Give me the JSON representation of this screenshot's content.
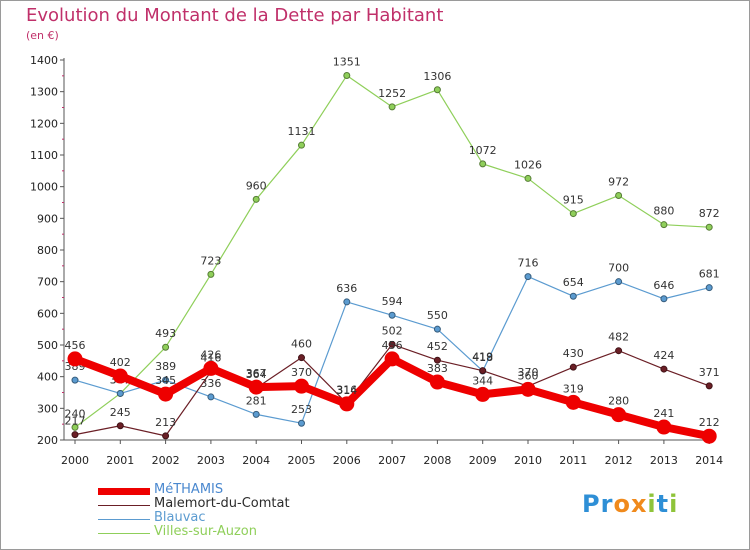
{
  "title": "Evolution du Montant de la Dette par Habitant",
  "subtitle": "(en €)",
  "logo": {
    "letters": [
      "P",
      "r",
      "o",
      "x",
      "i",
      "t",
      "i"
    ],
    "colors": [
      "#2e8fd6",
      "#2e8fd6",
      "#f08a1c",
      "#f08a1c",
      "#8fc43a",
      "#2e8fd6",
      "#8fc43a"
    ]
  },
  "chart_data": {
    "type": "line",
    "title": "Evolution du Montant de la Dette par Habitant",
    "xlabel": "",
    "ylabel": "(en €)",
    "ylim": [
      200,
      1400
    ],
    "yticks": [
      200,
      300,
      400,
      500,
      600,
      700,
      800,
      900,
      1000,
      1100,
      1200,
      1300,
      1400
    ],
    "grid": false,
    "legend_position": "bottom-left",
    "categories": [
      "2000",
      "2001",
      "2002",
      "2003",
      "2004",
      "2005",
      "2006",
      "2007",
      "2008",
      "2009",
      "2010",
      "2011",
      "2012",
      "2013",
      "2014"
    ],
    "series": [
      {
        "name": "Villes-sur-Auzon",
        "color": "#8fcf5a",
        "values": [
          240,
          347,
          493,
          723,
          960,
          1131,
          1351,
          1252,
          1306,
          1072,
          1026,
          915,
          972,
          880,
          872
        ]
      },
      {
        "name": "Blauvac",
        "color": "#5b9bd0",
        "values": [
          389,
          347,
          389,
          336,
          281,
          253,
          636,
          594,
          550,
          418,
          716,
          654,
          700,
          646,
          681
        ]
      },
      {
        "name": "Malemort-du-Comtat",
        "color": "#6b1f26",
        "values": [
          217,
          245,
          213,
          416,
          364,
          460,
          316,
          502,
          452,
          419,
          370,
          430,
          482,
          424,
          371
        ]
      },
      {
        "name": "MéTHAMIS",
        "color": "#ee0000",
        "values": [
          456,
          402,
          345,
          426,
          367,
          370,
          314,
          456,
          383,
          344,
          360,
          319,
          280,
          241,
          212
        ]
      }
    ]
  }
}
